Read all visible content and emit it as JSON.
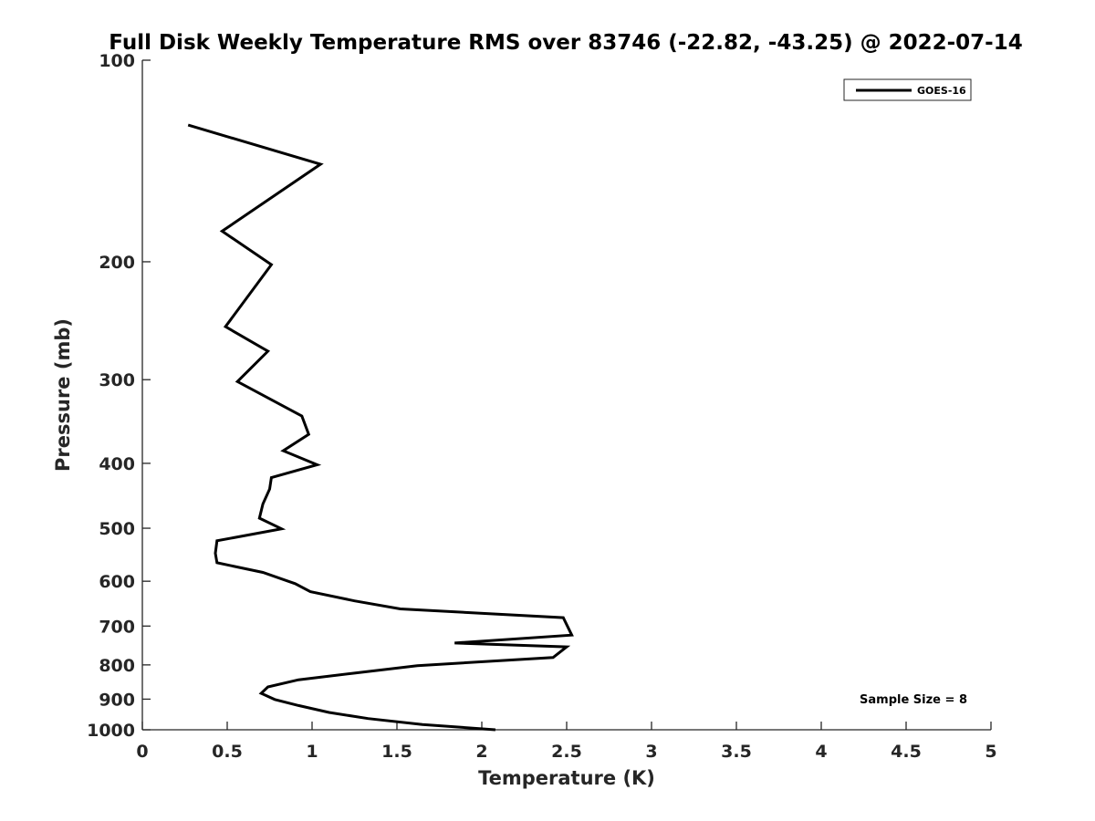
{
  "chart_data": {
    "type": "line",
    "title": "Full Disk Weekly Temperature RMS over 83746 (-22.82, -43.25) @ 2022-07-14",
    "xlabel": "Temperature (K)",
    "ylabel": "Pressure (mb)",
    "xlim": [
      0,
      5
    ],
    "ylim": [
      1000,
      100
    ],
    "yscale": "log",
    "y_reversed": true,
    "grid": false,
    "legend_position": "top-right",
    "x_ticks": [
      "0",
      "0.5",
      "1",
      "1.5",
      "2",
      "2.5",
      "3",
      "3.5",
      "4",
      "4.5",
      "5"
    ],
    "y_ticks": [
      "100",
      "200",
      "300",
      "400",
      "500",
      "600",
      "700",
      "800",
      "900",
      "1000"
    ],
    "annotation": "Sample Size = 8",
    "series": [
      {
        "name": "GOES-16",
        "color": "#000000",
        "points": [
          [
            0.27,
            125
          ],
          [
            1.05,
            143
          ],
          [
            0.47,
            180
          ],
          [
            0.76,
            202
          ],
          [
            0.49,
            250
          ],
          [
            0.74,
            272
          ],
          [
            0.56,
            302
          ],
          [
            0.94,
            340
          ],
          [
            0.98,
            362
          ],
          [
            0.83,
            383
          ],
          [
            1.03,
            402
          ],
          [
            0.76,
            420
          ],
          [
            0.75,
            437
          ],
          [
            0.71,
            460
          ],
          [
            0.69,
            483
          ],
          [
            0.82,
            501
          ],
          [
            0.44,
            522
          ],
          [
            0.43,
            545
          ],
          [
            0.44,
            563
          ],
          [
            0.71,
            582
          ],
          [
            0.9,
            605
          ],
          [
            0.99,
            622
          ],
          [
            1.25,
            642
          ],
          [
            1.52,
            660
          ],
          [
            2.48,
            680
          ],
          [
            2.53,
            722
          ],
          [
            1.84,
            742
          ],
          [
            2.5,
            752
          ],
          [
            2.42,
            780
          ],
          [
            1.62,
            802
          ],
          [
            1.25,
            823
          ],
          [
            0.92,
            842
          ],
          [
            0.74,
            863
          ],
          [
            0.7,
            882
          ],
          [
            0.78,
            901
          ],
          [
            0.92,
            920
          ],
          [
            1.1,
            942
          ],
          [
            1.33,
            962
          ],
          [
            1.65,
            982
          ],
          [
            2.08,
            1000
          ]
        ]
      }
    ]
  }
}
